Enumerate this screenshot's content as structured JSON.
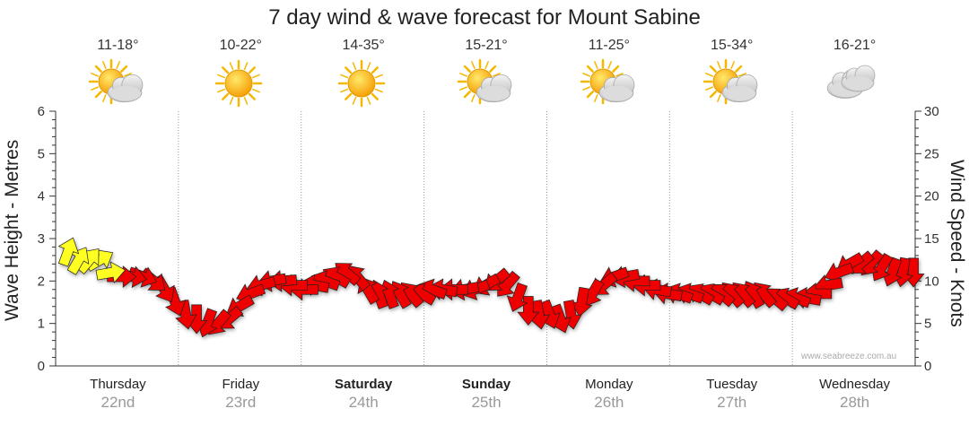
{
  "title": "7 day wind & wave forecast for Mount Sabine",
  "days": [
    {
      "name": "Thursday",
      "date": "22nd",
      "temp": "11-18°",
      "icon": "sun-cloud-icon",
      "bold": false
    },
    {
      "name": "Friday",
      "date": "23rd",
      "temp": "10-22°",
      "icon": "sun-icon",
      "bold": false
    },
    {
      "name": "Saturday",
      "date": "24th",
      "temp": "14-35°",
      "icon": "sun-icon",
      "bold": true
    },
    {
      "name": "Sunday",
      "date": "25th",
      "temp": "15-21°",
      "icon": "sun-cloud-icon",
      "bold": true
    },
    {
      "name": "Monday",
      "date": "26th",
      "temp": "11-25°",
      "icon": "sun-cloud-icon",
      "bold": false
    },
    {
      "name": "Tuesday",
      "date": "27th",
      "temp": "15-34°",
      "icon": "sun-cloud-icon",
      "bold": false
    },
    {
      "name": "Wednesday",
      "date": "28th",
      "temp": "16-21°",
      "icon": "cloud-icon",
      "bold": false
    }
  ],
  "watermark": "www.seabreeze.com.au",
  "colors": {
    "arrow_red": "#ee0000",
    "arrow_yellow": "#ffff22",
    "grid": "#999999",
    "axis": "#333333"
  },
  "chart_data": {
    "type": "line",
    "ylabel_left": "Wave Height - Metres",
    "ylabel_right": "Wind Speed - Knots",
    "y_left_range": [
      0,
      6
    ],
    "y_right_range": [
      0,
      30
    ],
    "y_left_ticks": [
      "0",
      "1",
      "2",
      "3",
      "4",
      "5",
      "6"
    ],
    "y_right_ticks": [
      "0",
      "5",
      "10",
      "15",
      "20",
      "25",
      "30"
    ],
    "x_categories": [
      "Thursday 22nd",
      "Friday 23rd",
      "Saturday 24th",
      "Sunday 25th",
      "Monday 26th",
      "Tuesday 27th",
      "Wednesday 28th"
    ],
    "series": [
      {
        "name": "Wind Speed - Knots",
        "note_points_per_day": 8,
        "knots": [
          13.5,
          12.5,
          12.5,
          12.5,
          11,
          10.5,
          10.5,
          10.5,
          10,
          9,
          7.5,
          6,
          5.5,
          5,
          5,
          5.5,
          7,
          8.5,
          9.5,
          10,
          10,
          9.5,
          9,
          9.5,
          10,
          10.5,
          11,
          10.5,
          9,
          8.5,
          8.5,
          8.5,
          8.5,
          8.5,
          9,
          9,
          9,
          9,
          9,
          9.5,
          10,
          9.5,
          8,
          6.5,
          6,
          6,
          5.5,
          6,
          7.5,
          8.5,
          9.5,
          10.5,
          10.5,
          10,
          9.5,
          9,
          8.5,
          8.5,
          8.5,
          8.5,
          8.5,
          8.5,
          8.5,
          8.5,
          8.5,
          8.5,
          8,
          8,
          8,
          8,
          8.5,
          9.5,
          11,
          12,
          12,
          12,
          11.5,
          11,
          11,
          11
        ],
        "direction_deg": [
          20,
          30,
          40,
          60,
          80,
          90,
          100,
          110,
          130,
          150,
          160,
          170,
          180,
          200,
          220,
          230,
          240,
          250,
          255,
          260,
          265,
          270,
          270,
          280,
          290,
          300,
          310,
          320,
          330,
          340,
          340,
          330,
          320,
          300,
          290,
          280,
          270,
          260,
          250,
          240,
          230,
          220,
          200,
          180,
          170,
          160,
          160,
          170,
          190,
          210,
          230,
          250,
          260,
          270,
          270,
          280,
          280,
          290,
          290,
          300,
          300,
          310,
          320,
          320,
          330,
          320,
          310,
          300,
          290,
          280,
          270,
          260,
          250,
          240,
          230,
          220,
          210,
          200,
          190,
          180
        ]
      }
    ],
    "yellow_points": 5
  }
}
